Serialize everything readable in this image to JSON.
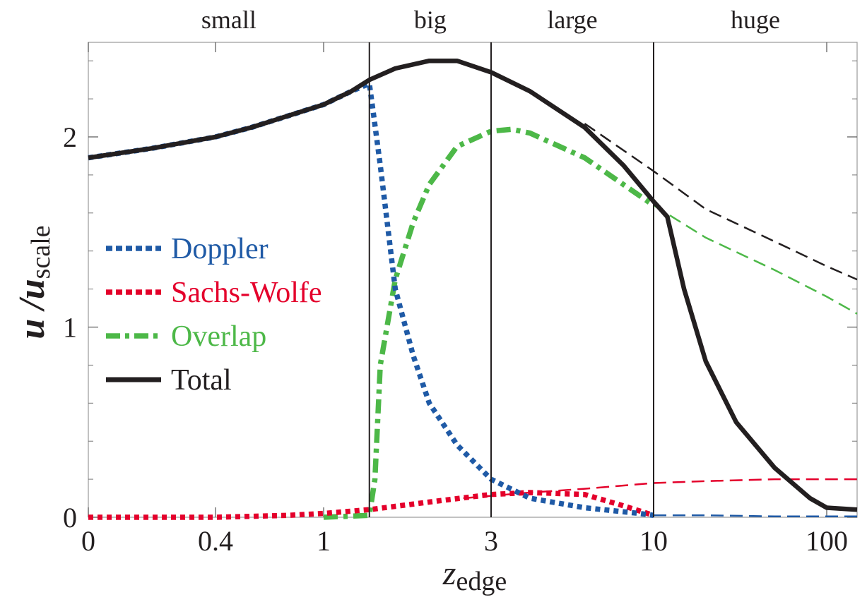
{
  "chart_data": {
    "type": "line",
    "title": "",
    "xlabel": {
      "base": "z",
      "sub": "edge"
    },
    "ylabel": {
      "base": "u /u",
      "sub": "scale"
    },
    "x_ticks": [
      "0",
      "0.4",
      "1",
      "3",
      "10",
      "100"
    ],
    "x_tick_values": [
      0,
      0.4,
      1,
      3,
      10,
      100
    ],
    "y_ticks": [
      "0",
      "1",
      "2"
    ],
    "y_tick_values": [
      0,
      1,
      2
    ],
    "ylim": [
      0,
      2.5
    ],
    "xlim": [
      0,
      150
    ],
    "x_scale": "piecewise logarithmic",
    "grid": false,
    "legend_position": "center-left",
    "regions": [
      {
        "label": "small",
        "x_start": 0,
        "x_end": 1.35
      },
      {
        "label": "big",
        "x_start": 1.35,
        "x_end": 3
      },
      {
        "label": "large",
        "x_start": 3,
        "x_end": 10
      },
      {
        "label": "huge",
        "x_start": 10,
        "x_end": 150
      }
    ],
    "boundaries": [
      1.35,
      3,
      10
    ],
    "series": [
      {
        "name": "Doppler",
        "color": "#1f5aa6",
        "style": "dotted",
        "x": [
          0,
          0.2,
          0.4,
          0.6,
          0.8,
          1,
          1.2,
          1.35,
          1.38,
          1.45,
          1.6,
          1.8,
          2,
          2.4,
          3,
          4,
          6,
          9,
          10
        ],
        "y": [
          1.89,
          1.94,
          2.0,
          2.05,
          2.11,
          2.17,
          2.24,
          2.28,
          2.15,
          1.85,
          1.2,
          0.85,
          0.6,
          0.38,
          0.2,
          0.1,
          0.05,
          0.02,
          0.01
        ]
      },
      {
        "name": "Doppler (extended)",
        "color": "#1f5aa6",
        "style": "dashed",
        "x": [
          10,
          20,
          50,
          100,
          150
        ],
        "y": [
          0.01,
          0.01,
          0.005,
          0.005,
          0.005
        ]
      },
      {
        "name": "Sachs-Wolfe",
        "color": "#e4002b",
        "style": "dotted",
        "x": [
          0,
          0.4,
          0.8,
          1,
          1.35,
          2,
          3,
          4,
          6,
          8,
          10
        ],
        "y": [
          0,
          0,
          0.01,
          0.02,
          0.04,
          0.08,
          0.12,
          0.13,
          0.12,
          0.06,
          0.01
        ]
      },
      {
        "name": "Sachs-Wolfe (extended)",
        "color": "#e4002b",
        "style": "dashed",
        "x": [
          2.5,
          4,
          6,
          10,
          20,
          50,
          100,
          150
        ],
        "y": [
          0.1,
          0.13,
          0.15,
          0.18,
          0.19,
          0.2,
          0.2,
          0.2
        ]
      },
      {
        "name": "Overlap",
        "color": "#4db848",
        "style": "dashdot",
        "x": [
          1,
          1.35,
          1.4,
          1.45,
          1.6,
          1.8,
          2,
          2.4,
          3,
          3.5,
          4,
          6,
          10
        ],
        "y": [
          0,
          0.01,
          0.2,
          0.8,
          1.25,
          1.55,
          1.75,
          1.95,
          2.03,
          2.04,
          2.02,
          1.89,
          1.64
        ]
      },
      {
        "name": "Overlap (extended)",
        "color": "#4db848",
        "style": "dashed",
        "x": [
          10,
          20,
          50,
          100,
          150
        ],
        "y": [
          1.64,
          1.47,
          1.3,
          1.16,
          1.07
        ]
      },
      {
        "name": "Total",
        "color": "#231f20",
        "style": "solid",
        "x": [
          0,
          0.2,
          0.4,
          0.6,
          0.8,
          1,
          1.2,
          1.35,
          1.6,
          2,
          2.4,
          3,
          4,
          6,
          8,
          10,
          12,
          15,
          20,
          30,
          50,
          80,
          100,
          150
        ],
        "y": [
          1.89,
          1.94,
          2.0,
          2.05,
          2.11,
          2.17,
          2.24,
          2.3,
          2.36,
          2.4,
          2.4,
          2.34,
          2.24,
          2.05,
          1.85,
          1.66,
          1.58,
          1.2,
          0.82,
          0.5,
          0.26,
          0.1,
          0.05,
          0.04
        ]
      },
      {
        "name": "Total (extended)",
        "color": "#231f20",
        "style": "dashed",
        "x": [
          6,
          10,
          20,
          50,
          100,
          150
        ],
        "y": [
          2.07,
          1.82,
          1.62,
          1.45,
          1.32,
          1.25
        ]
      }
    ],
    "legend": [
      {
        "label": "Doppler",
        "color": "#1f5aa6",
        "style": "dotted"
      },
      {
        "label": "Sachs-Wolfe",
        "color": "#e4002b",
        "style": "dotted"
      },
      {
        "label": "Overlap",
        "color": "#4db848",
        "style": "dashdot"
      },
      {
        "label": "Total",
        "color": "#231f20",
        "style": "solid"
      }
    ]
  }
}
